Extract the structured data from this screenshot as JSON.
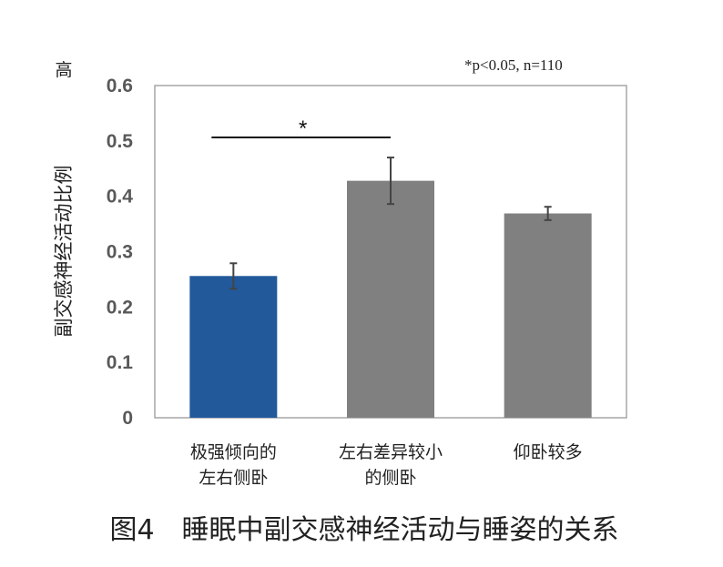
{
  "chart_data": {
    "type": "bar",
    "categories": [
      [
        "极强倾向的",
        "左右侧卧"
      ],
      [
        "左右差异较小",
        "的侧卧"
      ],
      [
        "仰卧较多"
      ]
    ],
    "values": [
      0.256,
      0.428,
      0.369
    ],
    "errors": [
      0.023,
      0.042,
      0.012
    ],
    "bar_colors": [
      "#21599b",
      "#808080",
      "#808080"
    ],
    "ylabel": "副交感神经活动比例",
    "y_high_label": "高",
    "ylim": [
      0,
      0.6
    ],
    "yticks": [
      0,
      0.1,
      0.2,
      0.3,
      0.4,
      0.5,
      0.6
    ],
    "ytick_labels": [
      "0",
      "0.1",
      "0.2",
      "0.3",
      "0.4",
      "0.5",
      "0.6"
    ],
    "note": "*p<0.05, n=110",
    "significance": {
      "between": [
        0,
        1
      ],
      "label": "*"
    },
    "grid": false,
    "caption": "图4　睡眠中副交感神经活动与睡姿的关系"
  }
}
